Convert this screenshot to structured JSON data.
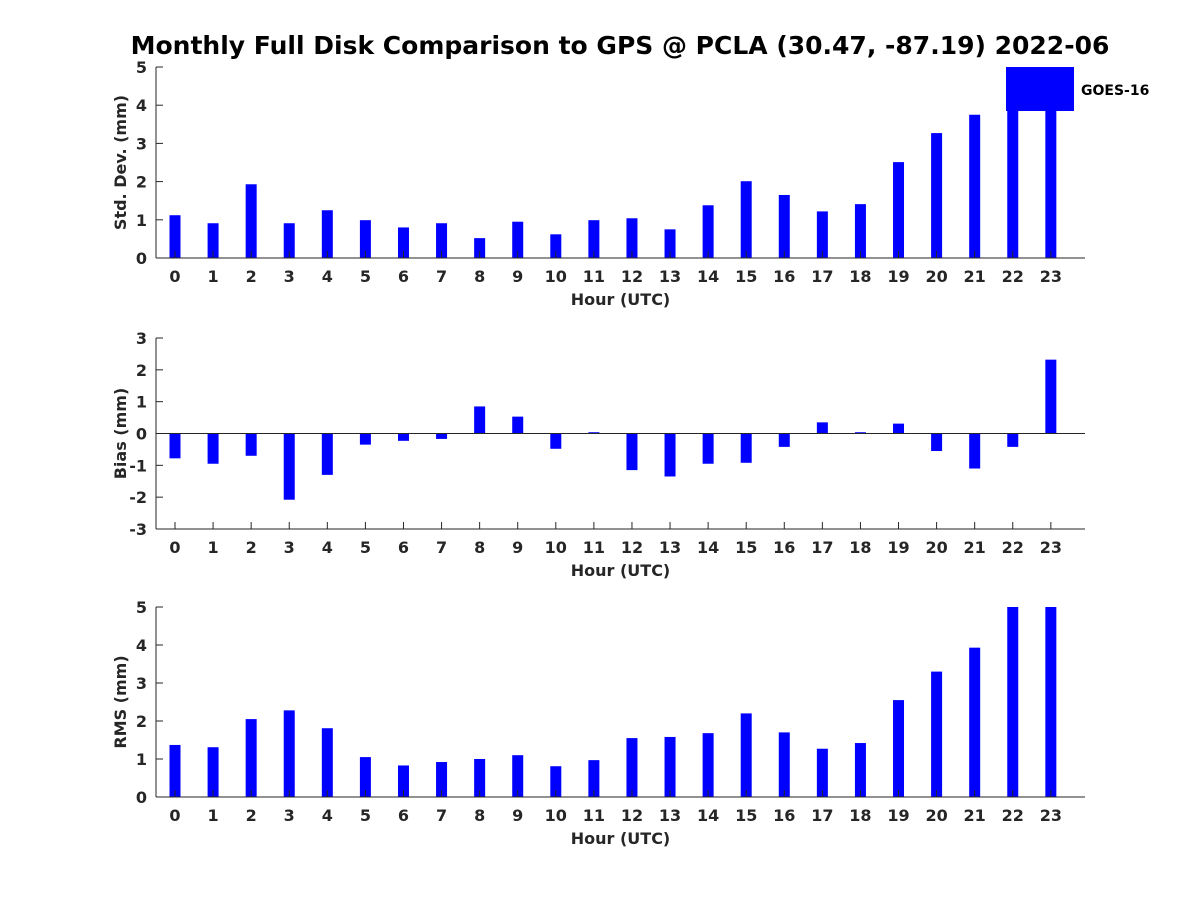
{
  "chart_data": {
    "title": "Monthly Full Disk Comparison to GPS @ PCLA (30.47, -87.19) 2022-06",
    "type": "bar",
    "legend": {
      "entries": [
        "GOES-16"
      ],
      "placement": "top-right",
      "color": "#0000ff"
    },
    "bar_color": "#0000ff",
    "panels": [
      {
        "id": "std",
        "type": "bar",
        "xlabel": "Hour (UTC)",
        "ylabel": "Std. Dev. (mm)",
        "ylim": [
          0,
          5
        ],
        "yticks": [
          0,
          1,
          2,
          3,
          4,
          5
        ],
        "categories": [
          "0",
          "1",
          "2",
          "3",
          "4",
          "5",
          "6",
          "7",
          "8",
          "9",
          "10",
          "11",
          "12",
          "13",
          "14",
          "15",
          "16",
          "17",
          "18",
          "19",
          "20",
          "21",
          "22",
          "23"
        ],
        "values": [
          1.12,
          0.91,
          1.93,
          0.91,
          1.25,
          0.99,
          0.8,
          0.91,
          0.52,
          0.95,
          0.62,
          0.99,
          1.04,
          0.75,
          1.38,
          2.01,
          1.65,
          1.22,
          1.41,
          2.51,
          3.27,
          3.75,
          5.0,
          5.0
        ]
      },
      {
        "id": "bias",
        "type": "bar",
        "xlabel": "Hour (UTC)",
        "ylabel": "Bias (mm)",
        "ylim": [
          -3,
          3
        ],
        "yticks": [
          -3,
          -2,
          -1,
          0,
          1,
          2,
          3
        ],
        "categories": [
          "0",
          "1",
          "2",
          "3",
          "4",
          "5",
          "6",
          "7",
          "8",
          "9",
          "10",
          "11",
          "12",
          "13",
          "14",
          "15",
          "16",
          "17",
          "18",
          "19",
          "20",
          "21",
          "22",
          "23"
        ],
        "values": [
          -0.78,
          -0.95,
          -0.7,
          -2.08,
          -1.3,
          -0.35,
          -0.23,
          -0.17,
          0.85,
          0.53,
          -0.48,
          0.04,
          -1.15,
          -1.35,
          -0.95,
          -0.92,
          -0.42,
          0.35,
          0.04,
          0.31,
          -0.55,
          -1.1,
          -0.42,
          2.32
        ]
      },
      {
        "id": "rms",
        "type": "bar",
        "xlabel": "Hour (UTC)",
        "ylabel": "RMS (mm)",
        "ylim": [
          0,
          5
        ],
        "yticks": [
          0,
          1,
          2,
          3,
          4,
          5
        ],
        "categories": [
          "0",
          "1",
          "2",
          "3",
          "4",
          "5",
          "6",
          "7",
          "8",
          "9",
          "10",
          "11",
          "12",
          "13",
          "14",
          "15",
          "16",
          "17",
          "18",
          "19",
          "20",
          "21",
          "22",
          "23"
        ],
        "values": [
          1.37,
          1.31,
          2.05,
          2.28,
          1.81,
          1.05,
          0.83,
          0.92,
          1.0,
          1.1,
          0.81,
          0.97,
          1.55,
          1.58,
          1.68,
          2.2,
          1.7,
          1.27,
          1.42,
          2.55,
          3.3,
          3.93,
          5.0,
          5.0
        ]
      }
    ]
  }
}
